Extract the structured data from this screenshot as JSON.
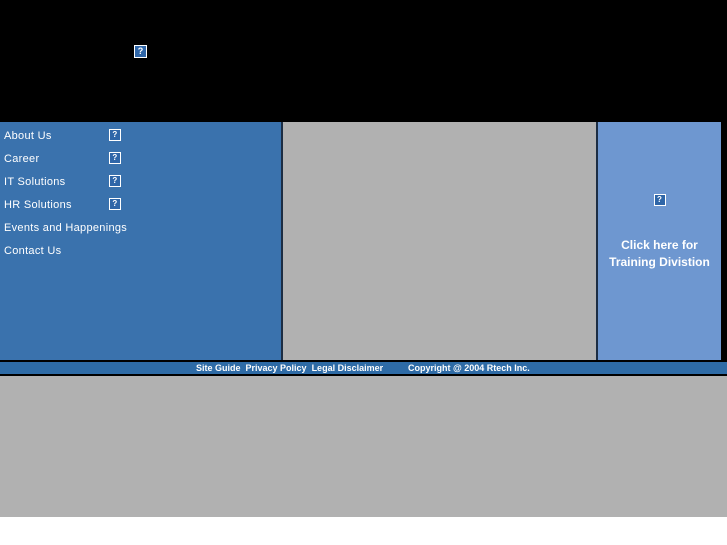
{
  "colors": {
    "header_bg": "#000000",
    "sidebar_bg": "#3a72ad",
    "content_bg": "#b1b1b1",
    "right_panel_bg": "#6e97d0",
    "footer_bg": "#2e6ba6",
    "text": "#ffffff"
  },
  "icons": {
    "broken_image_glyph": "?"
  },
  "sidebar": {
    "items": [
      {
        "label": "About Us"
      },
      {
        "label": "Career"
      },
      {
        "label": "IT Solutions"
      },
      {
        "label": "HR Solutions"
      },
      {
        "label": "Events and Happenings"
      },
      {
        "label": "Contact Us"
      }
    ]
  },
  "right_panel": {
    "line1": "Click here for",
    "line2": "Training Divistion"
  },
  "footer": {
    "links": [
      {
        "label": "Site Guide"
      },
      {
        "label": "Privacy Policy"
      },
      {
        "label": "Legal Disclaimer"
      }
    ],
    "copyright": "Copyright @ 2004 Rtech Inc."
  }
}
